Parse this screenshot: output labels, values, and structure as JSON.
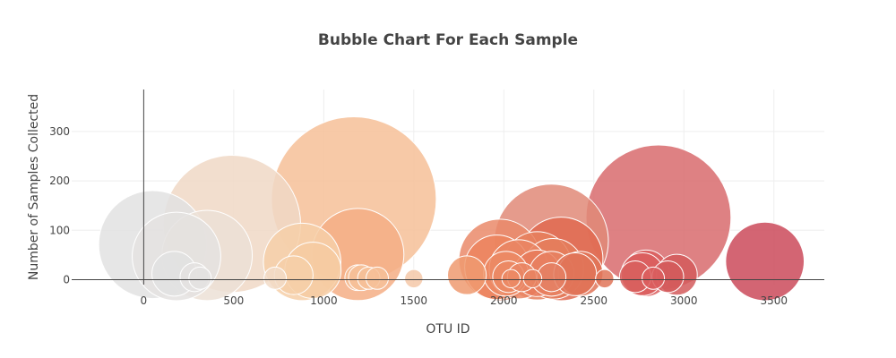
{
  "chart_data": {
    "type": "scatter",
    "subtype": "bubble",
    "title": "Bubble Chart For Each Sample",
    "xlabel": "OTU ID",
    "ylabel": "Number of Samples Collected",
    "xlim": [
      -400,
      3780
    ],
    "ylim": [
      -10,
      385
    ],
    "xticks": [
      0,
      500,
      1000,
      1500,
      2000,
      2500,
      3000,
      3500
    ],
    "xtick_labels": [
      "0",
      "500",
      "1000",
      "1500",
      "2000",
      "2500",
      "3000",
      "3500"
    ],
    "yticks": [
      0,
      100,
      200,
      300
    ],
    "ytick_labels": [
      "0",
      "100",
      "200",
      "300"
    ],
    "grid": true,
    "colorscale": "gray → peach → orange → red by OTU ID",
    "marker_size_encoding": "bubble size proportional to sample value",
    "points": [
      {
        "x": 50,
        "y": 71,
        "color": "#e2e2e2"
      },
      {
        "x": 490,
        "y": 113,
        "color": "#f0d8c6"
      },
      {
        "x": 1167,
        "y": 163,
        "color": "#f6bf98"
      },
      {
        "x": 2264,
        "y": 78,
        "color": "#e08a78"
      },
      {
        "x": 2859,
        "y": 126,
        "color": "#d86b6d"
      },
      {
        "x": 1189,
        "y": 51,
        "color": "#f4ae85"
      },
      {
        "x": 182,
        "y": 47,
        "color": "#e4e2e0"
      },
      {
        "x": 352,
        "y": 49,
        "color": "#ece0d6"
      },
      {
        "x": 3450,
        "y": 37,
        "color": "#cb4a5a"
      },
      {
        "x": 2318,
        "y": 42,
        "color": "#e06a50"
      },
      {
        "x": 1977,
        "y": 40,
        "color": "#ea8a6a"
      },
      {
        "x": 880,
        "y": 36,
        "color": "#f6cfa8"
      },
      {
        "x": 2186,
        "y": 28,
        "color": "#e6805e"
      },
      {
        "x": 2275,
        "y": 22,
        "color": "#e47c5c"
      },
      {
        "x": 2083,
        "y": 21,
        "color": "#ea8664"
      },
      {
        "x": 1962,
        "y": 25,
        "color": "#ec845e"
      },
      {
        "x": 940,
        "y": 19,
        "color": "#f6cba2"
      },
      {
        "x": 2186,
        "y": 13,
        "color": "#e87a5a"
      },
      {
        "x": 2012,
        "y": 12,
        "color": "#ec8a64"
      },
      {
        "x": 2265,
        "y": 12,
        "color": "#e78060"
      },
      {
        "x": 2396,
        "y": 11,
        "color": "#e07458"
      },
      {
        "x": 2426,
        "y": 12,
        "color": "#e07458"
      },
      {
        "x": 2790,
        "y": 13,
        "color": "#da5e5e"
      },
      {
        "x": 2770,
        "y": 11,
        "color": "#da5e5e"
      },
      {
        "x": 2961,
        "y": 10,
        "color": "#d45a5c"
      },
      {
        "x": 170,
        "y": 12,
        "color": "#e2e2e2"
      },
      {
        "x": 833,
        "y": 9,
        "color": "#f6cfa8"
      },
      {
        "x": 1795,
        "y": 9,
        "color": "#ee9a70"
      },
      {
        "x": 2730,
        "y": 6,
        "color": "#d8605e"
      },
      {
        "x": 2911,
        "y": 6,
        "color": "#d45a5c"
      },
      {
        "x": 2265,
        "y": 5,
        "color": "#e48064"
      },
      {
        "x": 2026,
        "y": 6,
        "color": "#ec8a64"
      },
      {
        "x": 2100,
        "y": 5,
        "color": "#ea8664"
      },
      {
        "x": 282,
        "y": 5,
        "color": "#e4e2e0"
      },
      {
        "x": 1189,
        "y": 4,
        "color": "#f6bf98"
      },
      {
        "x": 1209,
        "y": 4,
        "color": "#f6bf98"
      },
      {
        "x": 1250,
        "y": 3,
        "color": "#f6bf98"
      },
      {
        "x": 1297,
        "y": 3,
        "color": "#f6bf98"
      },
      {
        "x": 1500,
        "y": 2,
        "color": "#f4c8a8"
      },
      {
        "x": 730,
        "y": 3,
        "color": "#f2dcc8"
      },
      {
        "x": 313,
        "y": 3,
        "color": "#e4e2e0"
      },
      {
        "x": 2040,
        "y": 2,
        "color": "#ec8a64"
      },
      {
        "x": 2160,
        "y": 2,
        "color": "#e88260"
      },
      {
        "x": 2560,
        "y": 2,
        "color": "#e07458"
      },
      {
        "x": 2830,
        "y": 3,
        "color": "#da5e5e"
      }
    ],
    "bubble_values": [
      70,
      113,
      163,
      78,
      126,
      51,
      47,
      49,
      37,
      42,
      40,
      36,
      28,
      22,
      21,
      25,
      19,
      13,
      12,
      12,
      11,
      12,
      13,
      11,
      10,
      12,
      9,
      9,
      6,
      6,
      5,
      6,
      5,
      5,
      4,
      4,
      3,
      3,
      2,
      3,
      3,
      2,
      2,
      2,
      3
    ]
  }
}
